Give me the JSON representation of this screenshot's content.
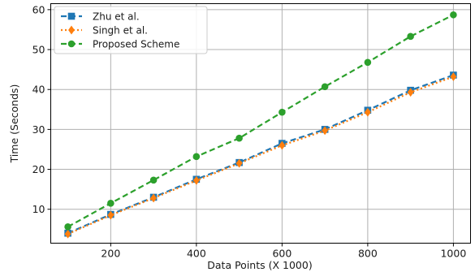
{
  "chart_data": {
    "type": "line",
    "title": "",
    "xlabel": "Data Points (X 1000)",
    "ylabel": "Time (Seconds)",
    "x": [
      100,
      200,
      300,
      400,
      500,
      600,
      700,
      800,
      900,
      1000
    ],
    "xlim": [
      60,
      1040
    ],
    "ylim": [
      1.5,
      61.5
    ],
    "xticks": [
      200,
      400,
      600,
      800,
      1000
    ],
    "yticks": [
      10,
      20,
      30,
      40,
      50,
      60
    ],
    "grid": true,
    "legend_position": "top-left",
    "series": [
      {
        "name": "Zhu et al.",
        "color": "#1f77b4",
        "line_style": "dashed",
        "marker": "square",
        "values": [
          4.0,
          8.7,
          13.0,
          17.5,
          21.7,
          26.5,
          30.0,
          34.8,
          39.8,
          43.6
        ]
      },
      {
        "name": "Singh et al.",
        "color": "#ff7f0e",
        "line_style": "dotted",
        "marker": "diamond",
        "values": [
          3.8,
          8.5,
          12.8,
          17.2,
          21.5,
          26.0,
          29.7,
          34.3,
          39.3,
          43.2
        ]
      },
      {
        "name": "Proposed Scheme",
        "color": "#2ca02c",
        "line_style": "dashed",
        "marker": "circle",
        "values": [
          5.6,
          11.5,
          17.3,
          23.2,
          27.8,
          34.3,
          40.7,
          46.8,
          53.3,
          58.7
        ]
      }
    ]
  }
}
